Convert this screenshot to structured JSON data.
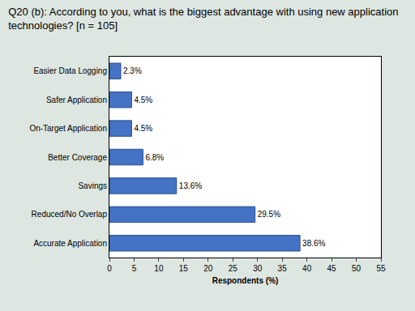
{
  "chart_data": {
    "type": "bar",
    "orientation": "horizontal",
    "title": "Q20 (b): According to you, what is the biggest advantage with using new application technologies? [n = 105]",
    "x_label": "Respondents (%)",
    "categories": [
      "Easier Data Logging",
      "Safer Application",
      "On-Target Application",
      "Better Coverage",
      "Savings",
      "Reduced/No Overlap",
      "Accurate Application"
    ],
    "values": [
      2.3,
      4.5,
      4.5,
      6.8,
      13.6,
      29.5,
      38.6
    ],
    "value_labels": [
      "2.3%",
      "4.5%",
      "4.5%",
      "6.8%",
      "13.6%",
      "29.5%",
      "38.6%"
    ],
    "data_labels": true,
    "color": "#4472c4",
    "xlim": [
      0,
      55
    ],
    "xticks": [
      0,
      5,
      10,
      15,
      20,
      25,
      30,
      35,
      40,
      45,
      50,
      55
    ],
    "grid": false
  }
}
